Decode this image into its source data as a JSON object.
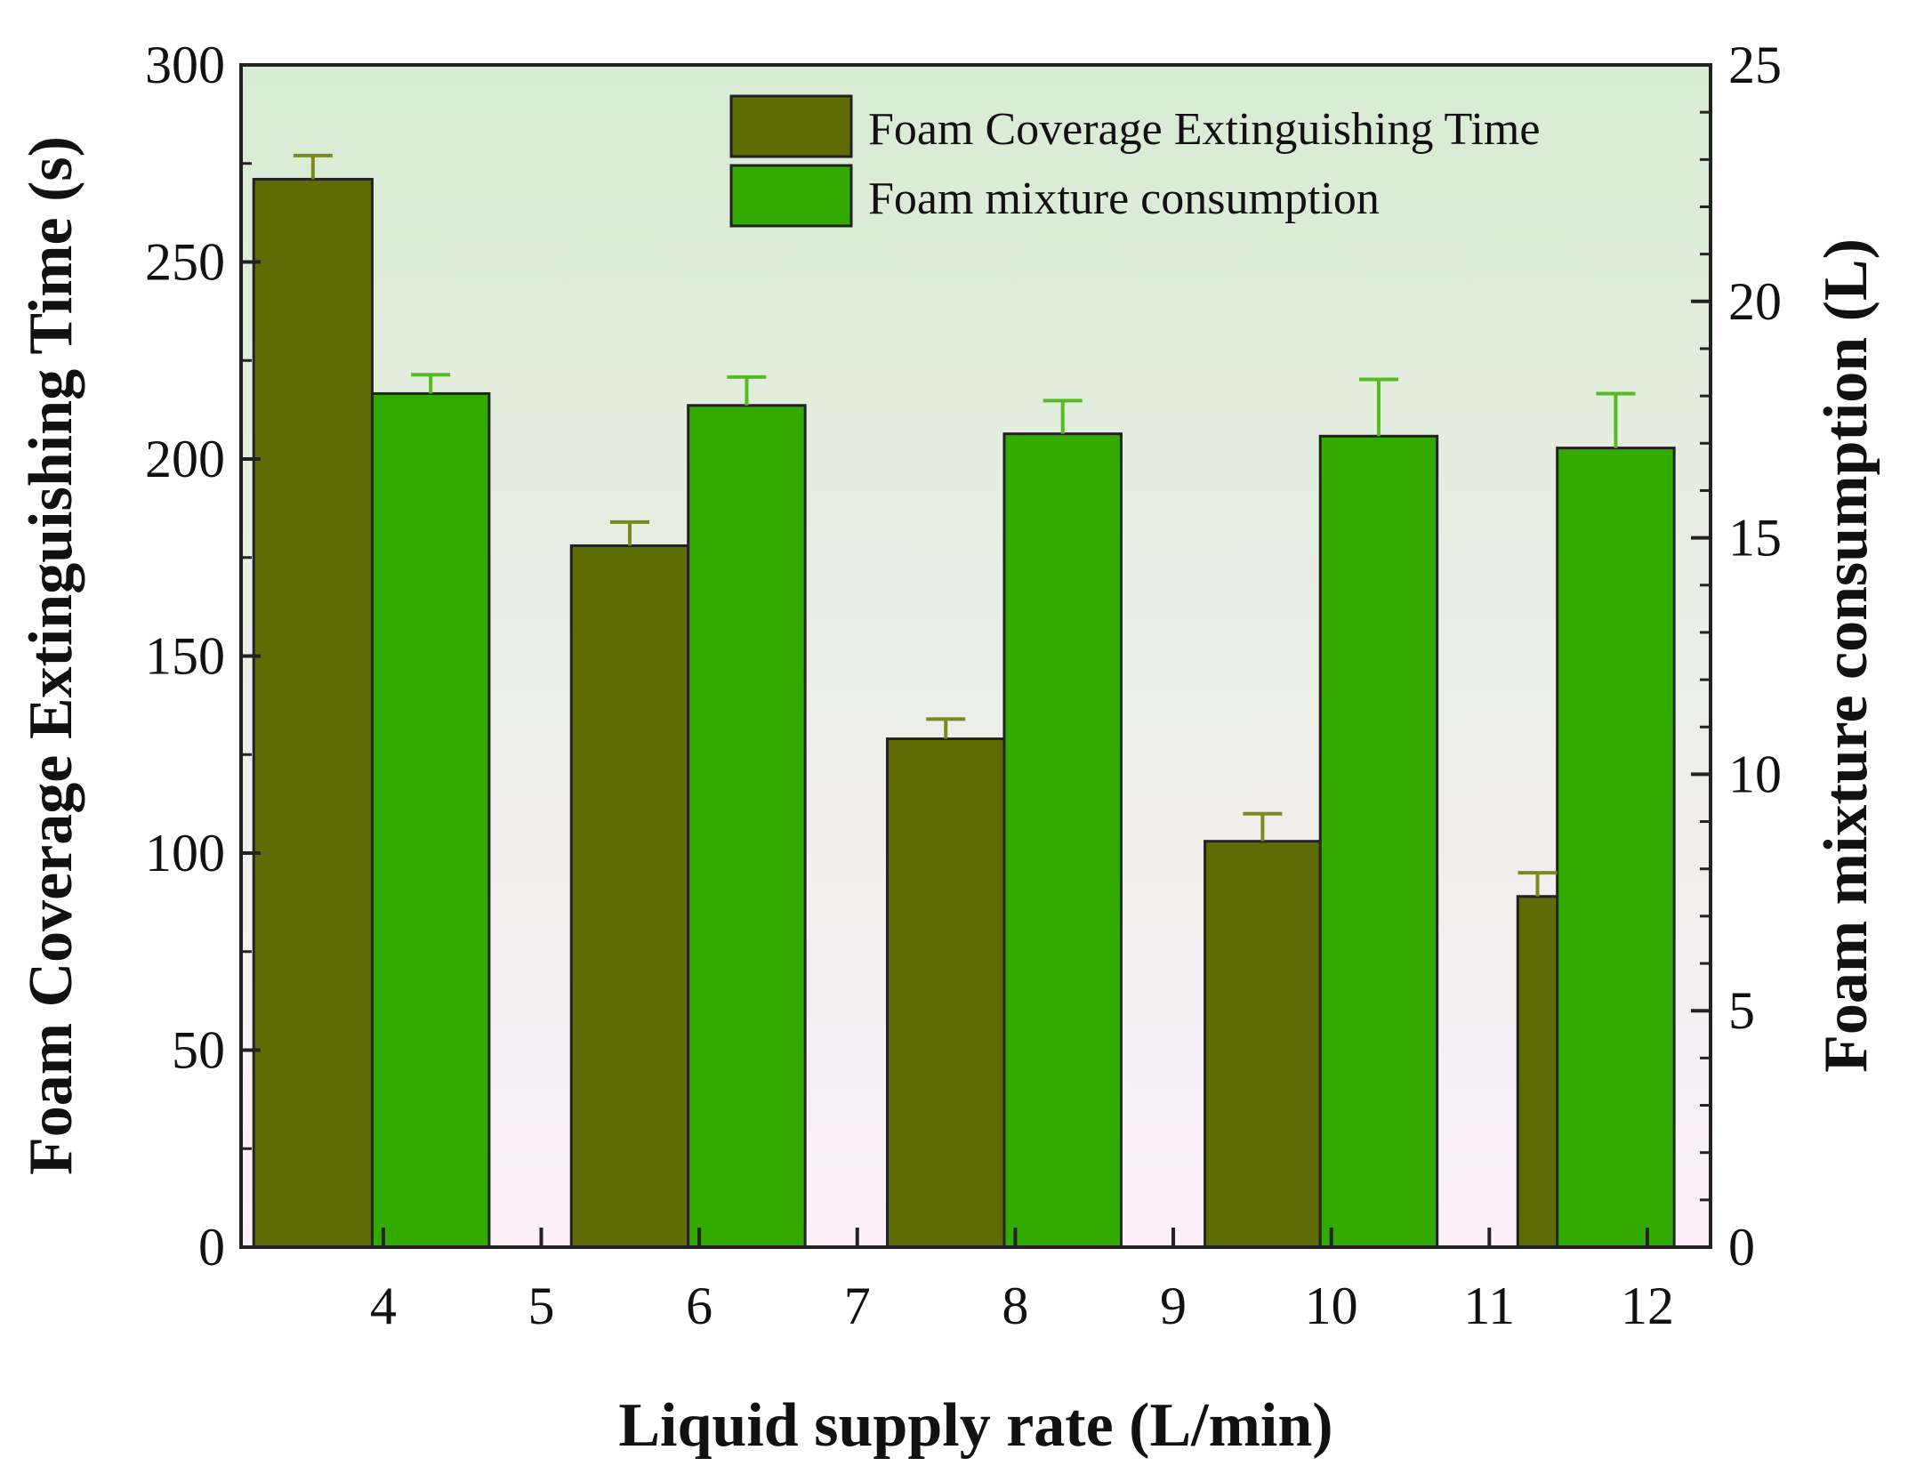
{
  "colors": {
    "bg_top": "#d8ecd3",
    "bg_bottom": "#fdf0fa",
    "time_bar": "#5f6b03",
    "time_err": "#7a8a1c",
    "consumption_bar": "#33aa00",
    "consumption_err": "#55bb22",
    "axis": "#222222"
  },
  "chart_data": {
    "type": "bar",
    "xlabel": "Liquid supply rate (L/min)",
    "ylabel_left": "Foam Coverage Extinguishing Time (s)",
    "ylabel_right": "Foam mixture consumption (L)",
    "xlim": [
      3.1,
      12.4
    ],
    "ylim_left": [
      0,
      300
    ],
    "ylim_right": [
      0,
      25
    ],
    "x_ticks": [
      4,
      5,
      6,
      7,
      8,
      9,
      10,
      11,
      12
    ],
    "y_ticks_left": [
      0,
      50,
      100,
      150,
      200,
      250,
      300
    ],
    "y_ticks_right": [
      0,
      5,
      10,
      15,
      20,
      25
    ],
    "legend_position": "top-right",
    "series": [
      {
        "name": "Foam Coverage Extinguishing Time",
        "axis": "left",
        "x_left": [
          3.18,
          5.19,
          7.19,
          9.2,
          11.18
        ],
        "x_right": [
          3.93,
          5.93,
          7.93,
          9.93,
          11.43
        ],
        "values": [
          271,
          178,
          129,
          103,
          89
        ],
        "errors": [
          6,
          6,
          5,
          7,
          6
        ]
      },
      {
        "name": "Foam mixture consumption",
        "axis": "right",
        "x_left": [
          3.93,
          5.93,
          7.93,
          9.93,
          11.43
        ],
        "x_right": [
          4.67,
          6.67,
          8.67,
          10.67,
          12.17
        ],
        "values": [
          18.05,
          17.8,
          17.2,
          17.15,
          16.9
        ],
        "errors": [
          0.4,
          0.6,
          0.7,
          1.2,
          1.15
        ]
      }
    ]
  }
}
